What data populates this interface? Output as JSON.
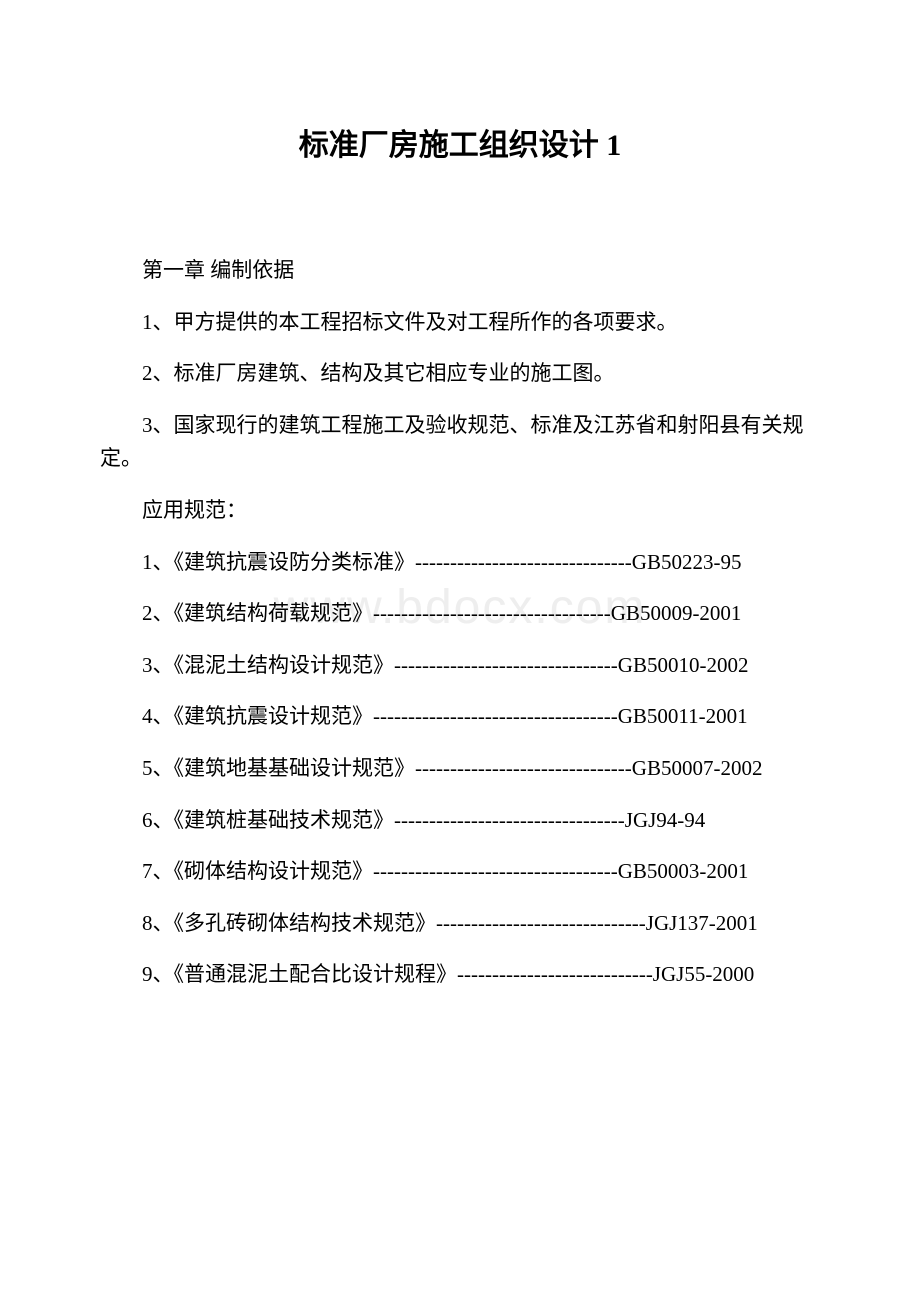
{
  "title": "标准厂房施工组织设计 1",
  "chapter_heading": "第一章 编制依据",
  "intro_items": [
    "1、甲方提供的本工程招标文件及对工程所作的各项要求。",
    "2、标准厂房建筑、结构及其它相应专业的施工图。",
    "3、国家现行的建筑工程施工及验收规范、标准及江苏省和射阳县有关规定。"
  ],
  "spec_label": "应用规范：",
  "specs": [
    {
      "num": "1、",
      "name": "《建筑抗震设防分类标准》",
      "dashes": "-------------------------------",
      "code": "GB50223-95"
    },
    {
      "num": "2、",
      "name": "《建筑结构荷载规范》",
      "dashes": "----------------------------------",
      "code": "GB50009-2001"
    },
    {
      "num": "3、",
      "name": "《混泥土结构设计规范》",
      "dashes": "--------------------------------",
      "code": "GB50010-2002"
    },
    {
      "num": "4、",
      "name": "《建筑抗震设计规范》",
      "dashes": "-----------------------------------",
      "code": "GB50011-2001"
    },
    {
      "num": "5、",
      "name": "《建筑地基基础设计规范》",
      "dashes": "-------------------------------",
      "code": "GB50007-2002"
    },
    {
      "num": "6、",
      "name": "《建筑桩基础技术规范》",
      "dashes": "---------------------------------",
      "code": "JGJ94-94"
    },
    {
      "num": "7、",
      "name": "《砌体结构设计规范》",
      "dashes": "-----------------------------------",
      "code": "GB50003-2001"
    },
    {
      "num": "8、",
      "name": "《多孔砖砌体结构技术规范》",
      "dashes": "------------------------------",
      "code": "JGJ137-2001"
    },
    {
      "num": "9、",
      "name": "《普通混泥土配合比设计规程》",
      "dashes": "----------------------------",
      "code": "JGJ55-2000"
    }
  ],
  "watermark": "www.bdocx.com",
  "colors": {
    "background": "#ffffff",
    "text": "#000000",
    "watermark": "#eeeeee"
  },
  "typography": {
    "title_fontsize": 30,
    "body_fontsize": 21,
    "watermark_fontsize": 48,
    "font_family": "SimSun"
  }
}
